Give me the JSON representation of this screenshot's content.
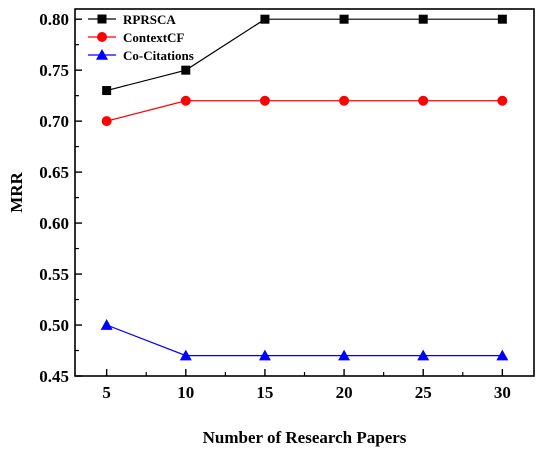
{
  "chart_data": {
    "type": "line",
    "title": "",
    "xlabel": "Number of Research Papers",
    "ylabel": "MRR",
    "x": [
      5,
      10,
      15,
      20,
      25,
      30
    ],
    "xlim": [
      3,
      32
    ],
    "ylim": [
      0.45,
      0.81
    ],
    "xticks": [
      "5",
      "10",
      "15",
      "20",
      "25",
      "30"
    ],
    "yticks": [
      "0.45",
      "0.50",
      "0.55",
      "0.60",
      "0.65",
      "0.70",
      "0.75",
      "0.80"
    ],
    "grid": false,
    "legend_position": "top-left",
    "series": [
      {
        "name": "RPRSCA",
        "values": [
          0.73,
          0.75,
          0.8,
          0.8,
          0.8,
          0.8
        ],
        "color": "#000000",
        "marker": "square"
      },
      {
        "name": "ContextCF",
        "values": [
          0.7,
          0.72,
          0.72,
          0.72,
          0.72,
          0.72
        ],
        "color": "#ff0000",
        "marker": "circle"
      },
      {
        "name": "Co-Citations",
        "values": [
          0.5,
          0.47,
          0.47,
          0.47,
          0.47,
          0.47
        ],
        "color": "#0000ff",
        "marker": "triangle"
      }
    ]
  }
}
